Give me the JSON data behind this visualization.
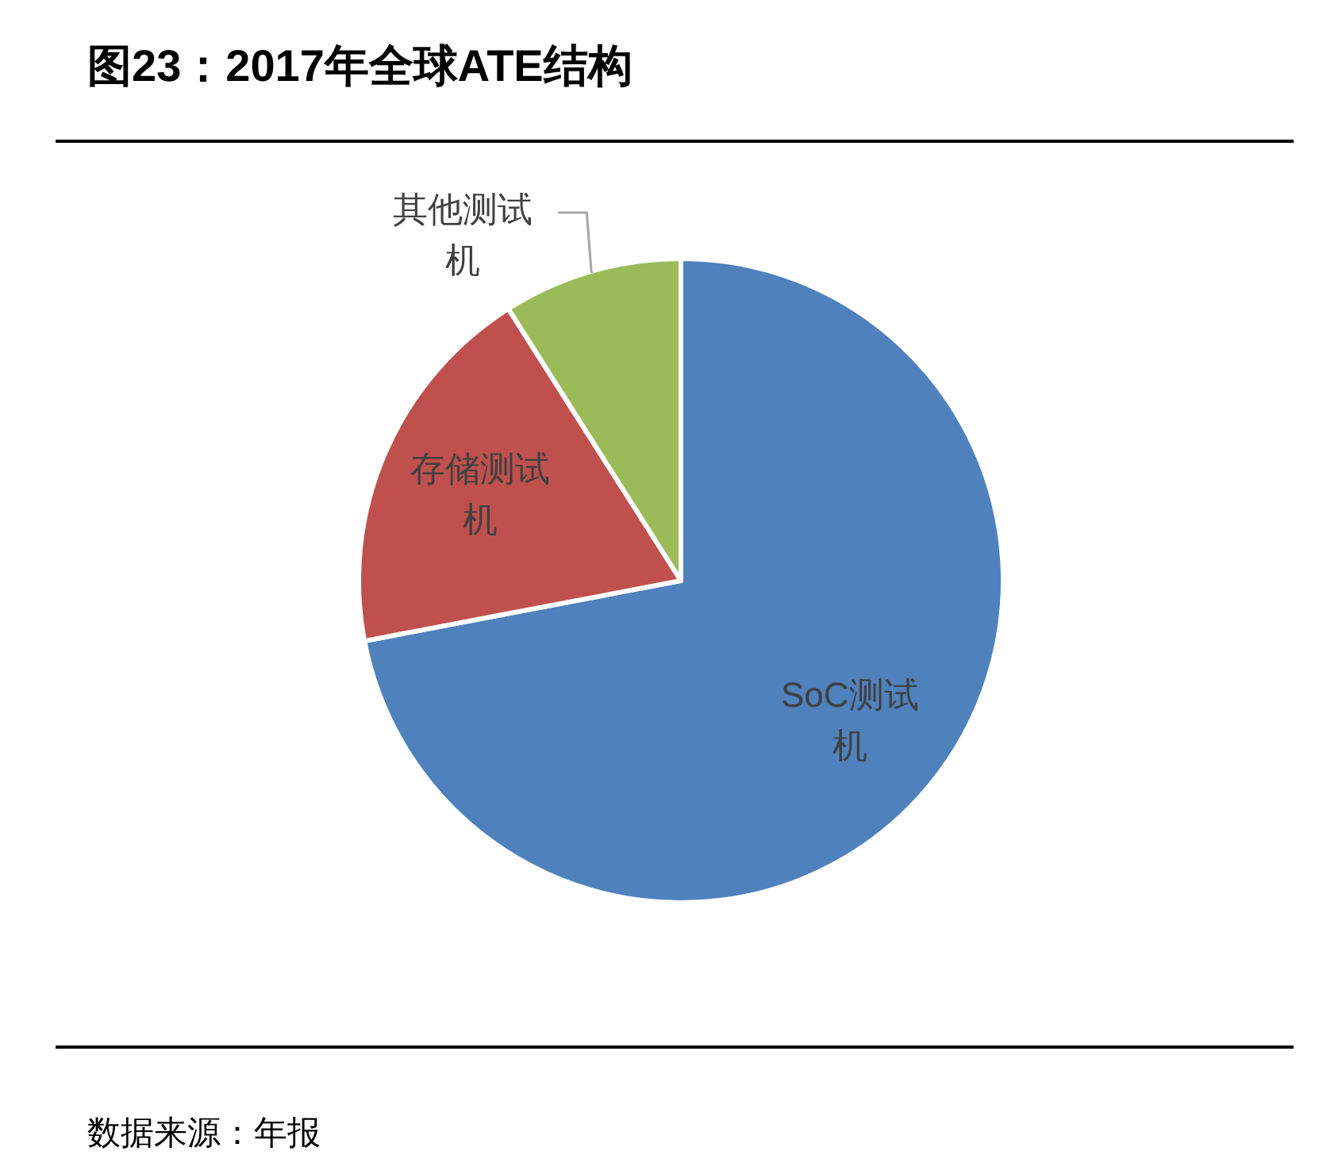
{
  "chart_data": {
    "type": "pie",
    "title": "图23：2017年全球ATE结构",
    "categories": [
      "SoC测试机",
      "存储测试机",
      "其他测试机"
    ],
    "values": [
      72,
      19,
      9
    ],
    "colors": [
      "#4f81bd",
      "#c0504d",
      "#9bbb59"
    ],
    "annotations": [
      "数据来源：年报"
    ]
  }
}
